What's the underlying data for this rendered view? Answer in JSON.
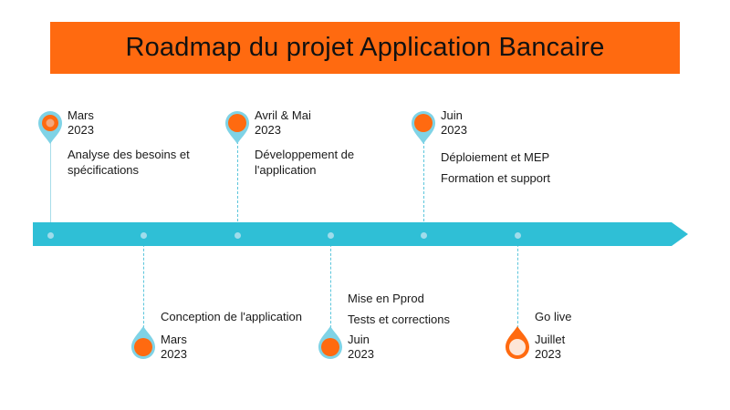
{
  "title": "Roadmap du projet Application Bancaire",
  "colors": {
    "accent": "#ff6a10",
    "axis": "#2fbfd6",
    "marker_ring": "#7fd3e6",
    "marker_core": "#ff6a10",
    "final_core": "#fde6d8"
  },
  "milestones_top": [
    {
      "month": "Mars",
      "year": "2023",
      "lines": [
        "Analyse des besoins et",
        "spécifications"
      ]
    },
    {
      "month": "Avril & Mai",
      "year": "2023",
      "lines": [
        "Développement de",
        "l'application"
      ]
    },
    {
      "month": "Juin",
      "year": "2023",
      "lines": [
        "Déploiement et MEP",
        "Formation et support"
      ]
    }
  ],
  "milestones_bottom": [
    {
      "month": "Mars",
      "year": "2023",
      "lines": [
        "Conception de l'application"
      ]
    },
    {
      "month": "Juin",
      "year": "2023",
      "lines": [
        "Mise en Pprod",
        "Tests et corrections"
      ]
    },
    {
      "month": "Juillet",
      "year": "2023",
      "lines": [
        "Go live"
      ]
    }
  ]
}
